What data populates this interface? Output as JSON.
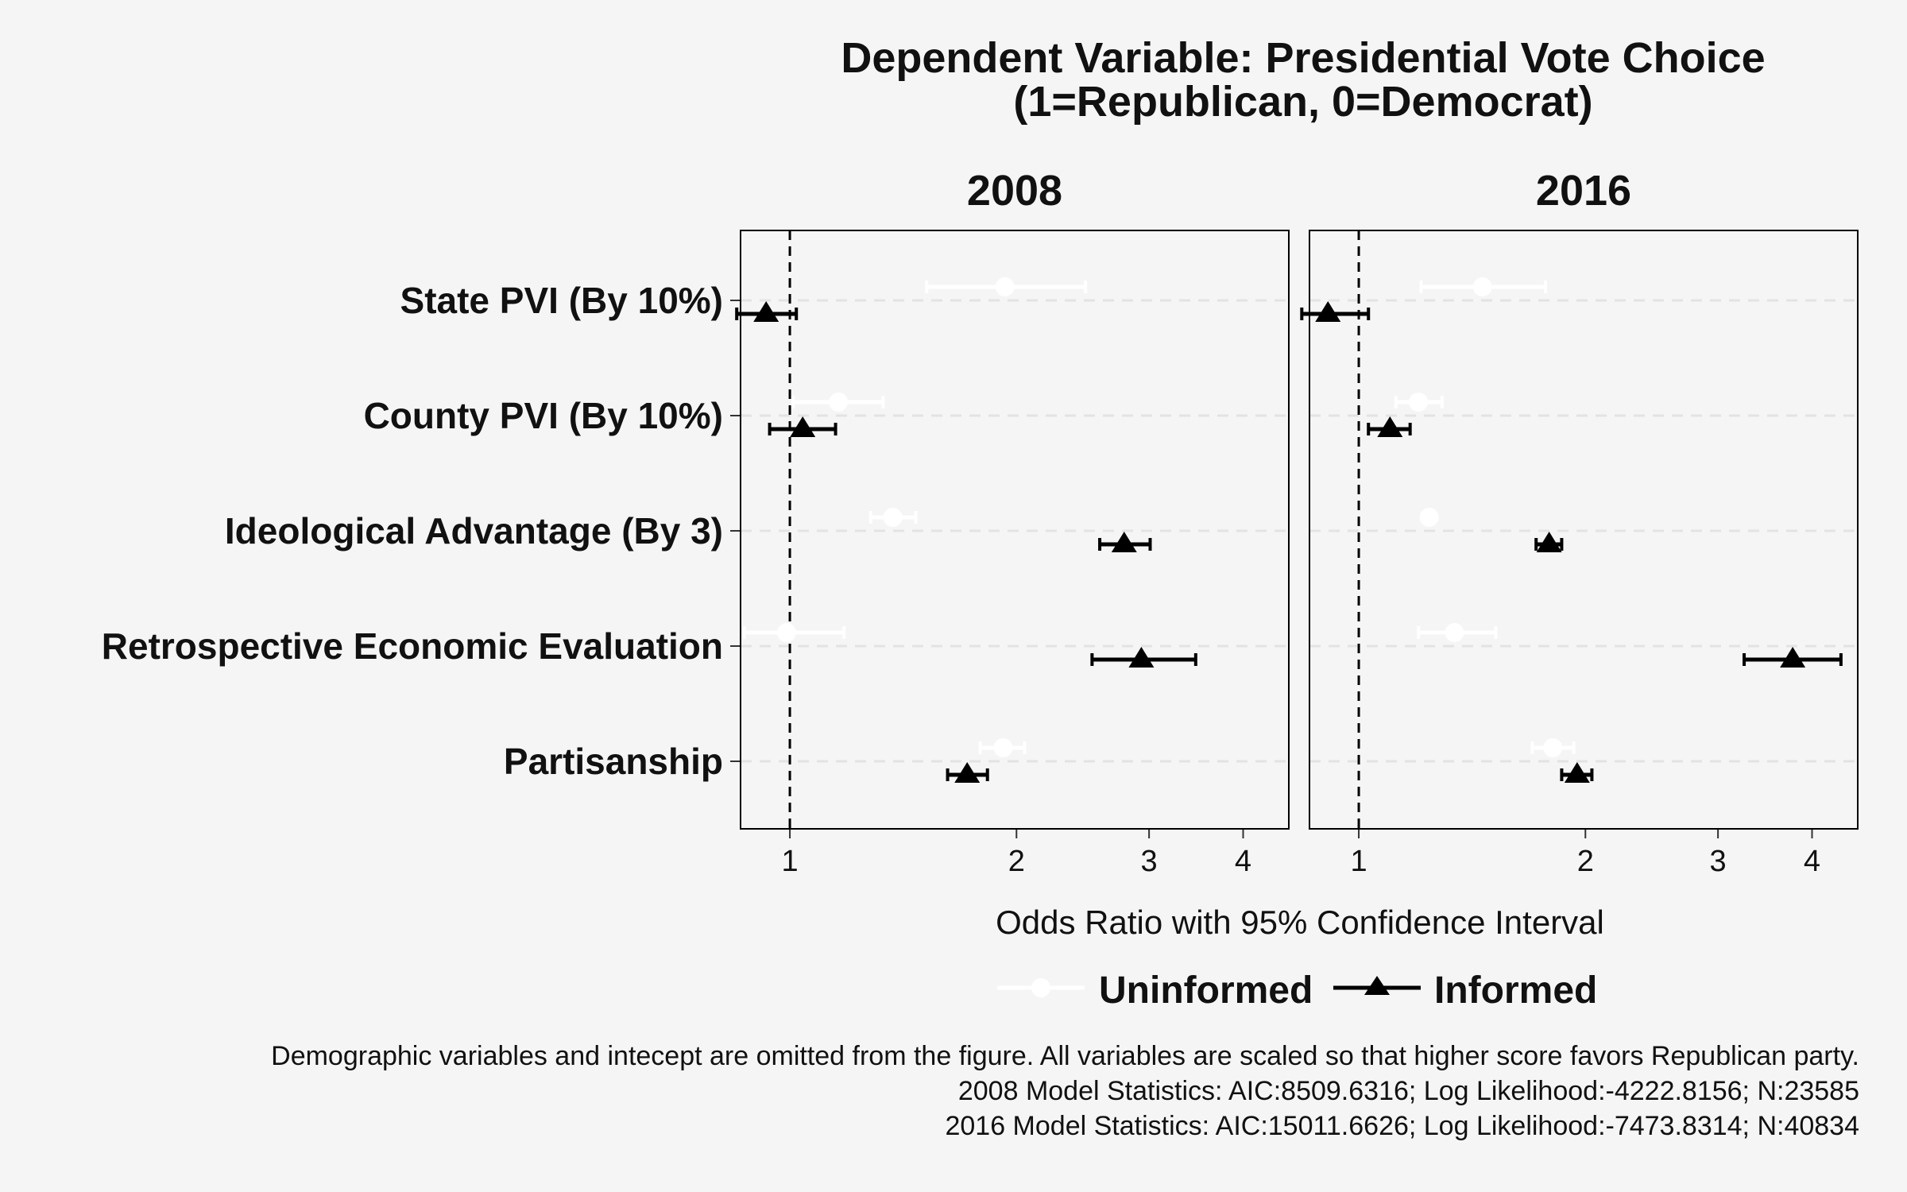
{
  "chart_data": {
    "type": "scatter",
    "title": [
      "Dependent Variable: Presidential Vote Choice",
      "(1=Republican, 0=Democrat)"
    ],
    "xlabel": "Odds Ratio with 95% Confidence Interval",
    "x_scale": "log",
    "xlim": [
      0.86,
      4.6
    ],
    "x_ticks": [
      1,
      2,
      3,
      4
    ],
    "x_tick_labels": [
      "1",
      "2",
      "3",
      "4"
    ],
    "reference_line": 1,
    "categories": [
      "State PVI (By 10%)",
      "County PVI (By 10%)",
      "Ideological Advantage (By 3)",
      "Retrospective Economic Evaluation",
      "Partisanship"
    ],
    "legend": {
      "placement": "bottom",
      "entries": [
        {
          "name": "Uninformed",
          "marker": "circle",
          "color": "#ffffff"
        },
        {
          "name": "Informed",
          "marker": "triangle",
          "color": "#000000"
        }
      ]
    },
    "panels": [
      {
        "name": "2008",
        "series": [
          {
            "name": "Uninformed",
            "estimates": [
              1.93,
              1.16,
              1.37,
              0.99,
              1.92
            ],
            "lower": [
              1.52,
              1.01,
              1.28,
              0.87,
              1.79
            ],
            "upper": [
              2.47,
              1.33,
              1.47,
              1.18,
              2.05
            ]
          },
          {
            "name": "Informed",
            "estimates": [
              0.93,
              1.04,
              2.78,
              2.93,
              1.72
            ],
            "lower": [
              0.85,
              0.94,
              2.58,
              2.52,
              1.62
            ],
            "upper": [
              1.02,
              1.15,
              3.01,
              3.46,
              1.83
            ]
          }
        ]
      },
      {
        "name": "2016",
        "series": [
          {
            "name": "Uninformed",
            "estimates": [
              1.46,
              1.2,
              1.24,
              1.34,
              1.81
            ],
            "lower": [
              1.21,
              1.12,
              1.24,
              1.2,
              1.7
            ],
            "upper": [
              1.77,
              1.29,
              1.24,
              1.52,
              1.93
            ]
          },
          {
            "name": "Informed",
            "estimates": [
              0.91,
              1.1,
              1.79,
              3.77,
              1.95
            ],
            "lower": [
              0.84,
              1.03,
              1.72,
              3.25,
              1.86
            ],
            "upper": [
              1.03,
              1.17,
              1.86,
              4.37,
              2.04
            ]
          }
        ]
      }
    ],
    "notes": [
      "Demographic variables and intecept are omitted from the figure. All variables are scaled so that higher score favors Republican party.",
      "2008 Model Statistics: AIC:8509.6316; Log Likelihood:-4222.8156; N:23585",
      "2016 Model Statistics: AIC:15011.6626; Log Likelihood:-7473.8314; N:40834"
    ]
  }
}
